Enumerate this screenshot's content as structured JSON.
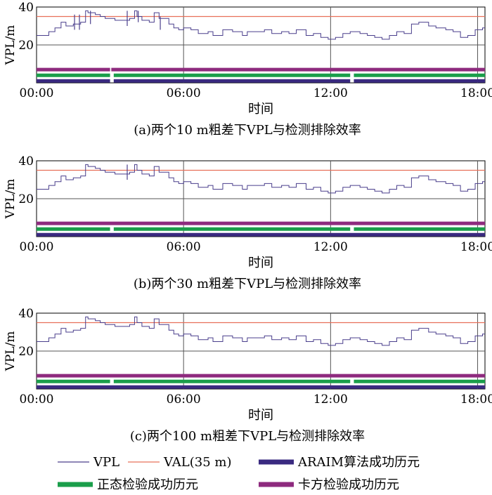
{
  "chart_data": [
    {
      "type": "line",
      "caption": "(a)两个10 m粗差下VPL与检测排除效率",
      "xlabel": "时间",
      "ylabel": "VPL/m",
      "xlim": [
        0,
        18.3
      ],
      "ylim": [
        0,
        40
      ],
      "xticks": [
        0,
        6,
        12,
        18
      ],
      "xtick_labels": [
        "00:00",
        "06:00",
        "12:00",
        "18:00"
      ],
      "yticks": [
        20,
        40
      ],
      "ytick_labels": [
        "20",
        "40"
      ],
      "val": 35,
      "vpl": {
        "x": [
          0.0,
          0.5,
          0.75,
          1.0,
          1.2,
          1.5,
          1.8,
          2.0,
          2.1,
          2.4,
          2.6,
          2.8,
          3.0,
          3.2,
          3.6,
          3.8,
          4.0,
          4.1,
          4.3,
          4.6,
          4.8,
          5.0,
          5.4,
          5.6,
          5.8,
          6.0,
          6.3,
          6.6,
          7.0,
          7.2,
          7.6,
          8.0,
          8.4,
          8.6,
          9.0,
          9.3,
          9.6,
          10.0,
          10.3,
          10.6,
          11.0,
          11.3,
          11.6,
          11.9,
          12.2,
          12.5,
          12.8,
          13.2,
          13.5,
          13.8,
          14.1,
          14.4,
          14.7,
          15.0,
          15.3,
          15.6,
          16.0,
          16.3,
          16.7,
          17.0,
          17.3,
          17.6,
          17.9,
          18.2
        ],
        "y": [
          25,
          27,
          29,
          32,
          30,
          31,
          32,
          38,
          37,
          36,
          35,
          34,
          34,
          33,
          33,
          34,
          38,
          35,
          33,
          32,
          37,
          34,
          31,
          29,
          28,
          29,
          28,
          26,
          27,
          25,
          28,
          27,
          25,
          27,
          27,
          28,
          26,
          27,
          26,
          28,
          25,
          26,
          24,
          23,
          24,
          26,
          27,
          26,
          25,
          24,
          23,
          25,
          27,
          26,
          31,
          32,
          30,
          29,
          28,
          27,
          24,
          25,
          28,
          29
        ]
      },
      "spikes": [
        {
          "x": 1.55,
          "y_min": 28,
          "y_max": 36
        },
        {
          "x": 1.75,
          "y_min": 28,
          "y_max": 36
        },
        {
          "x": 2.2,
          "y_min": 31,
          "y_max": 38
        },
        {
          "x": 3.7,
          "y_min": 30,
          "y_max": 38
        },
        {
          "x": 4.15,
          "y_min": 32,
          "y_max": 38
        },
        {
          "x": 5.05,
          "y_min": 28,
          "y_max": 35
        }
      ],
      "bands": {
        "chi": {
          "y": 7,
          "gaps": [
            [
              3.0,
              3.05
            ]
          ]
        },
        "normal": {
          "y": 4,
          "gaps": [
            [
              3.0,
              3.15
            ],
            [
              12.8,
              12.95
            ]
          ]
        },
        "araim": {
          "y": 1,
          "gaps": [
            [
              3.0,
              3.15
            ],
            [
              12.8,
              12.95
            ]
          ]
        }
      }
    },
    {
      "type": "line",
      "caption": "(b)两个30 m粗差下VPL与检测排除效率",
      "xlabel": "时间",
      "ylabel": "VPL/m",
      "xlim": [
        0,
        18.3
      ],
      "ylim": [
        0,
        40
      ],
      "xticks": [
        0,
        6,
        12,
        18
      ],
      "xtick_labels": [
        "00:00",
        "06:00",
        "12:00",
        "18:00"
      ],
      "yticks": [
        20,
        40
      ],
      "ytick_labels": [
        "20",
        "40"
      ],
      "val": 35,
      "vpl": {
        "x": [
          0.0,
          0.5,
          0.75,
          1.0,
          1.2,
          1.5,
          1.8,
          2.0,
          2.1,
          2.4,
          2.6,
          2.8,
          3.0,
          3.2,
          3.6,
          3.8,
          4.0,
          4.1,
          4.3,
          4.6,
          4.8,
          5.0,
          5.4,
          5.6,
          5.8,
          6.0,
          6.3,
          6.6,
          7.0,
          7.2,
          7.6,
          8.0,
          8.4,
          8.6,
          9.0,
          9.3,
          9.6,
          10.0,
          10.3,
          10.6,
          11.0,
          11.3,
          11.6,
          11.9,
          12.2,
          12.5,
          12.8,
          13.2,
          13.5,
          13.8,
          14.1,
          14.4,
          14.7,
          15.0,
          15.3,
          15.6,
          16.0,
          16.3,
          16.7,
          17.0,
          17.3,
          17.6,
          17.9,
          18.2
        ],
        "y": [
          25,
          27,
          29,
          32,
          30,
          31,
          32,
          38,
          37,
          36,
          35,
          34,
          34,
          33,
          33,
          34,
          38,
          35,
          33,
          32,
          37,
          34,
          31,
          29,
          28,
          29,
          28,
          26,
          27,
          25,
          28,
          27,
          25,
          27,
          27,
          28,
          26,
          27,
          26,
          28,
          25,
          26,
          24,
          23,
          24,
          26,
          27,
          26,
          25,
          24,
          23,
          25,
          27,
          26,
          31,
          32,
          30,
          29,
          28,
          27,
          24,
          25,
          28,
          29
        ]
      },
      "spikes": [
        {
          "x": 3.7,
          "y_min": 30,
          "y_max": 38
        }
      ],
      "bands": {
        "chi": {
          "y": 7,
          "gaps": []
        },
        "normal": {
          "y": 4,
          "gaps": [
            [
              3.0,
              3.15
            ],
            [
              12.8,
              12.95
            ]
          ]
        },
        "araim": {
          "y": 1,
          "gaps": []
        }
      }
    },
    {
      "type": "line",
      "caption": "(c)两个100 m粗差下VPL与检测排除效率",
      "xlabel": "时间",
      "ylabel": "VPL/m",
      "xlim": [
        0,
        18.3
      ],
      "ylim": [
        0,
        40
      ],
      "xticks": [
        0,
        6,
        12,
        18
      ],
      "xtick_labels": [
        "00:00",
        "06:00",
        "12:00",
        "18:00"
      ],
      "yticks": [
        20,
        40
      ],
      "ytick_labels": [
        "20",
        "40"
      ],
      "val": 35,
      "vpl": {
        "x": [
          0.0,
          0.5,
          0.75,
          1.0,
          1.2,
          1.5,
          1.8,
          2.0,
          2.1,
          2.4,
          2.6,
          2.8,
          3.0,
          3.2,
          3.6,
          3.8,
          4.0,
          4.1,
          4.3,
          4.6,
          4.8,
          5.0,
          5.4,
          5.6,
          5.8,
          6.0,
          6.3,
          6.6,
          7.0,
          7.2,
          7.6,
          8.0,
          8.4,
          8.6,
          9.0,
          9.3,
          9.6,
          10.0,
          10.3,
          10.6,
          11.0,
          11.3,
          11.6,
          11.9,
          12.2,
          12.5,
          12.8,
          13.2,
          13.5,
          13.8,
          14.1,
          14.4,
          14.7,
          15.0,
          15.3,
          15.6,
          16.0,
          16.3,
          16.7,
          17.0,
          17.3,
          17.6,
          17.9,
          18.2
        ],
        "y": [
          25,
          27,
          29,
          32,
          30,
          31,
          32,
          38,
          37,
          36,
          35,
          34,
          34,
          33,
          33,
          34,
          38,
          35,
          33,
          32,
          37,
          34,
          31,
          29,
          28,
          29,
          28,
          26,
          27,
          25,
          28,
          27,
          25,
          27,
          27,
          28,
          26,
          27,
          26,
          28,
          25,
          26,
          24,
          23,
          24,
          26,
          27,
          26,
          25,
          24,
          23,
          25,
          27,
          26,
          31,
          32,
          30,
          29,
          28,
          27,
          24,
          25,
          28,
          29
        ]
      },
      "spikes": [],
      "bands": {
        "chi": {
          "y": 7,
          "gaps": []
        },
        "normal": {
          "y": 4,
          "gaps": [
            [
              3.0,
              3.15
            ],
            [
              12.8,
              12.95
            ]
          ]
        },
        "araim": {
          "y": 1,
          "gaps": []
        }
      }
    }
  ],
  "legend": [
    {
      "key": "vpl",
      "label": "VPL",
      "color": "#4a3f8c",
      "kind": "thin"
    },
    {
      "key": "val",
      "label": "VAL(35 m)",
      "color": "#e8705a",
      "kind": "thin"
    },
    {
      "key": "araim",
      "label": "ARAIM算法成功历元",
      "color": "#3a2a80",
      "kind": "thick"
    },
    {
      "key": "normal",
      "label": "正态检验成功历元",
      "color": "#1a9e4a",
      "kind": "thick"
    },
    {
      "key": "chi",
      "label": "卡方检验成功历元",
      "color": "#8e2a7e",
      "kind": "thick"
    }
  ],
  "colors": {
    "vpl": "#4a3f8c",
    "val": "#e8705a",
    "araim": "#3a2a80",
    "normal": "#1a9e4a",
    "chi": "#8e2a7e",
    "grid": "#555555"
  }
}
